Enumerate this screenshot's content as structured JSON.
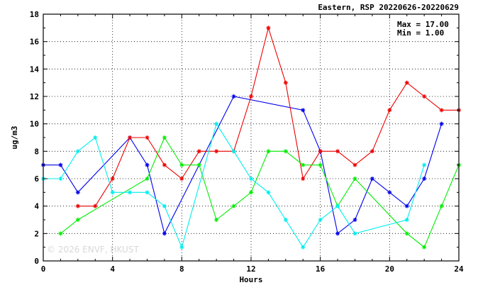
{
  "chart_data": {
    "type": "line",
    "title": "Eastern, RSP 20220626-20220629",
    "xlabel": "Hours",
    "ylabel": "ug/m3",
    "xlim": [
      0,
      24
    ],
    "ylim": [
      0,
      18
    ],
    "xticks": [
      0,
      4,
      8,
      12,
      16,
      20,
      24
    ],
    "yticks": [
      0,
      2,
      4,
      6,
      8,
      10,
      12,
      14,
      16,
      18
    ],
    "grid": true,
    "max_text": "Max = 17.00",
    "min_text": "Min =  1.00",
    "watermark": "© 2026  ENVF, HKUST",
    "series": [
      {
        "color": "#0000ee",
        "points": [
          [
            0,
            7
          ],
          [
            1,
            7
          ],
          [
            2,
            5
          ],
          [
            5,
            9
          ],
          [
            6,
            7
          ],
          [
            7,
            2
          ],
          [
            11,
            12
          ],
          [
            15,
            11
          ],
          [
            16,
            8
          ],
          [
            17,
            2
          ],
          [
            18,
            3
          ],
          [
            19,
            6
          ],
          [
            20,
            5
          ],
          [
            21,
            4
          ],
          [
            22,
            6
          ],
          [
            23,
            10
          ]
        ]
      },
      {
        "color": "#ee0000",
        "points": [
          [
            2,
            4
          ],
          [
            3,
            4
          ],
          [
            4,
            6
          ],
          [
            5,
            9
          ],
          [
            6,
            9
          ],
          [
            7,
            7
          ],
          [
            8,
            6
          ],
          [
            9,
            8
          ],
          [
            10,
            8
          ],
          [
            11,
            8
          ],
          [
            12,
            12
          ],
          [
            13,
            17
          ],
          [
            14,
            13
          ],
          [
            15,
            6
          ],
          [
            16,
            8
          ],
          [
            17,
            8
          ],
          [
            18,
            7
          ],
          [
            19,
            8
          ],
          [
            20,
            11
          ],
          [
            21,
            13
          ],
          [
            22,
            12
          ],
          [
            23,
            11
          ],
          [
            24,
            11
          ]
        ]
      },
      {
        "color": "#00ee00",
        "points": [
          [
            1,
            2
          ],
          [
            2,
            3
          ],
          [
            6,
            6
          ],
          [
            7,
            9
          ],
          [
            8,
            7
          ],
          [
            9,
            7
          ],
          [
            10,
            3
          ],
          [
            11,
            4
          ],
          [
            12,
            5
          ],
          [
            13,
            8
          ],
          [
            14,
            8
          ],
          [
            15,
            7
          ],
          [
            16,
            7
          ],
          [
            17,
            4
          ],
          [
            18,
            6
          ],
          [
            21,
            2
          ],
          [
            22,
            1
          ],
          [
            23,
            4
          ],
          [
            24,
            7
          ]
        ]
      },
      {
        "color": "#00eeee",
        "points": [
          [
            0,
            6
          ],
          [
            1,
            6
          ],
          [
            2,
            8
          ],
          [
            3,
            9
          ],
          [
            4,
            5
          ],
          [
            5,
            5
          ],
          [
            6,
            5
          ],
          [
            7,
            4
          ],
          [
            8,
            1
          ],
          [
            10,
            10
          ],
          [
            11,
            8
          ],
          [
            12,
            6
          ],
          [
            13,
            5
          ],
          [
            14,
            3
          ],
          [
            15,
            1
          ],
          [
            16,
            3
          ],
          [
            17,
            4
          ],
          [
            18,
            2
          ],
          [
            21,
            3
          ],
          [
            22,
            7
          ]
        ]
      }
    ]
  }
}
